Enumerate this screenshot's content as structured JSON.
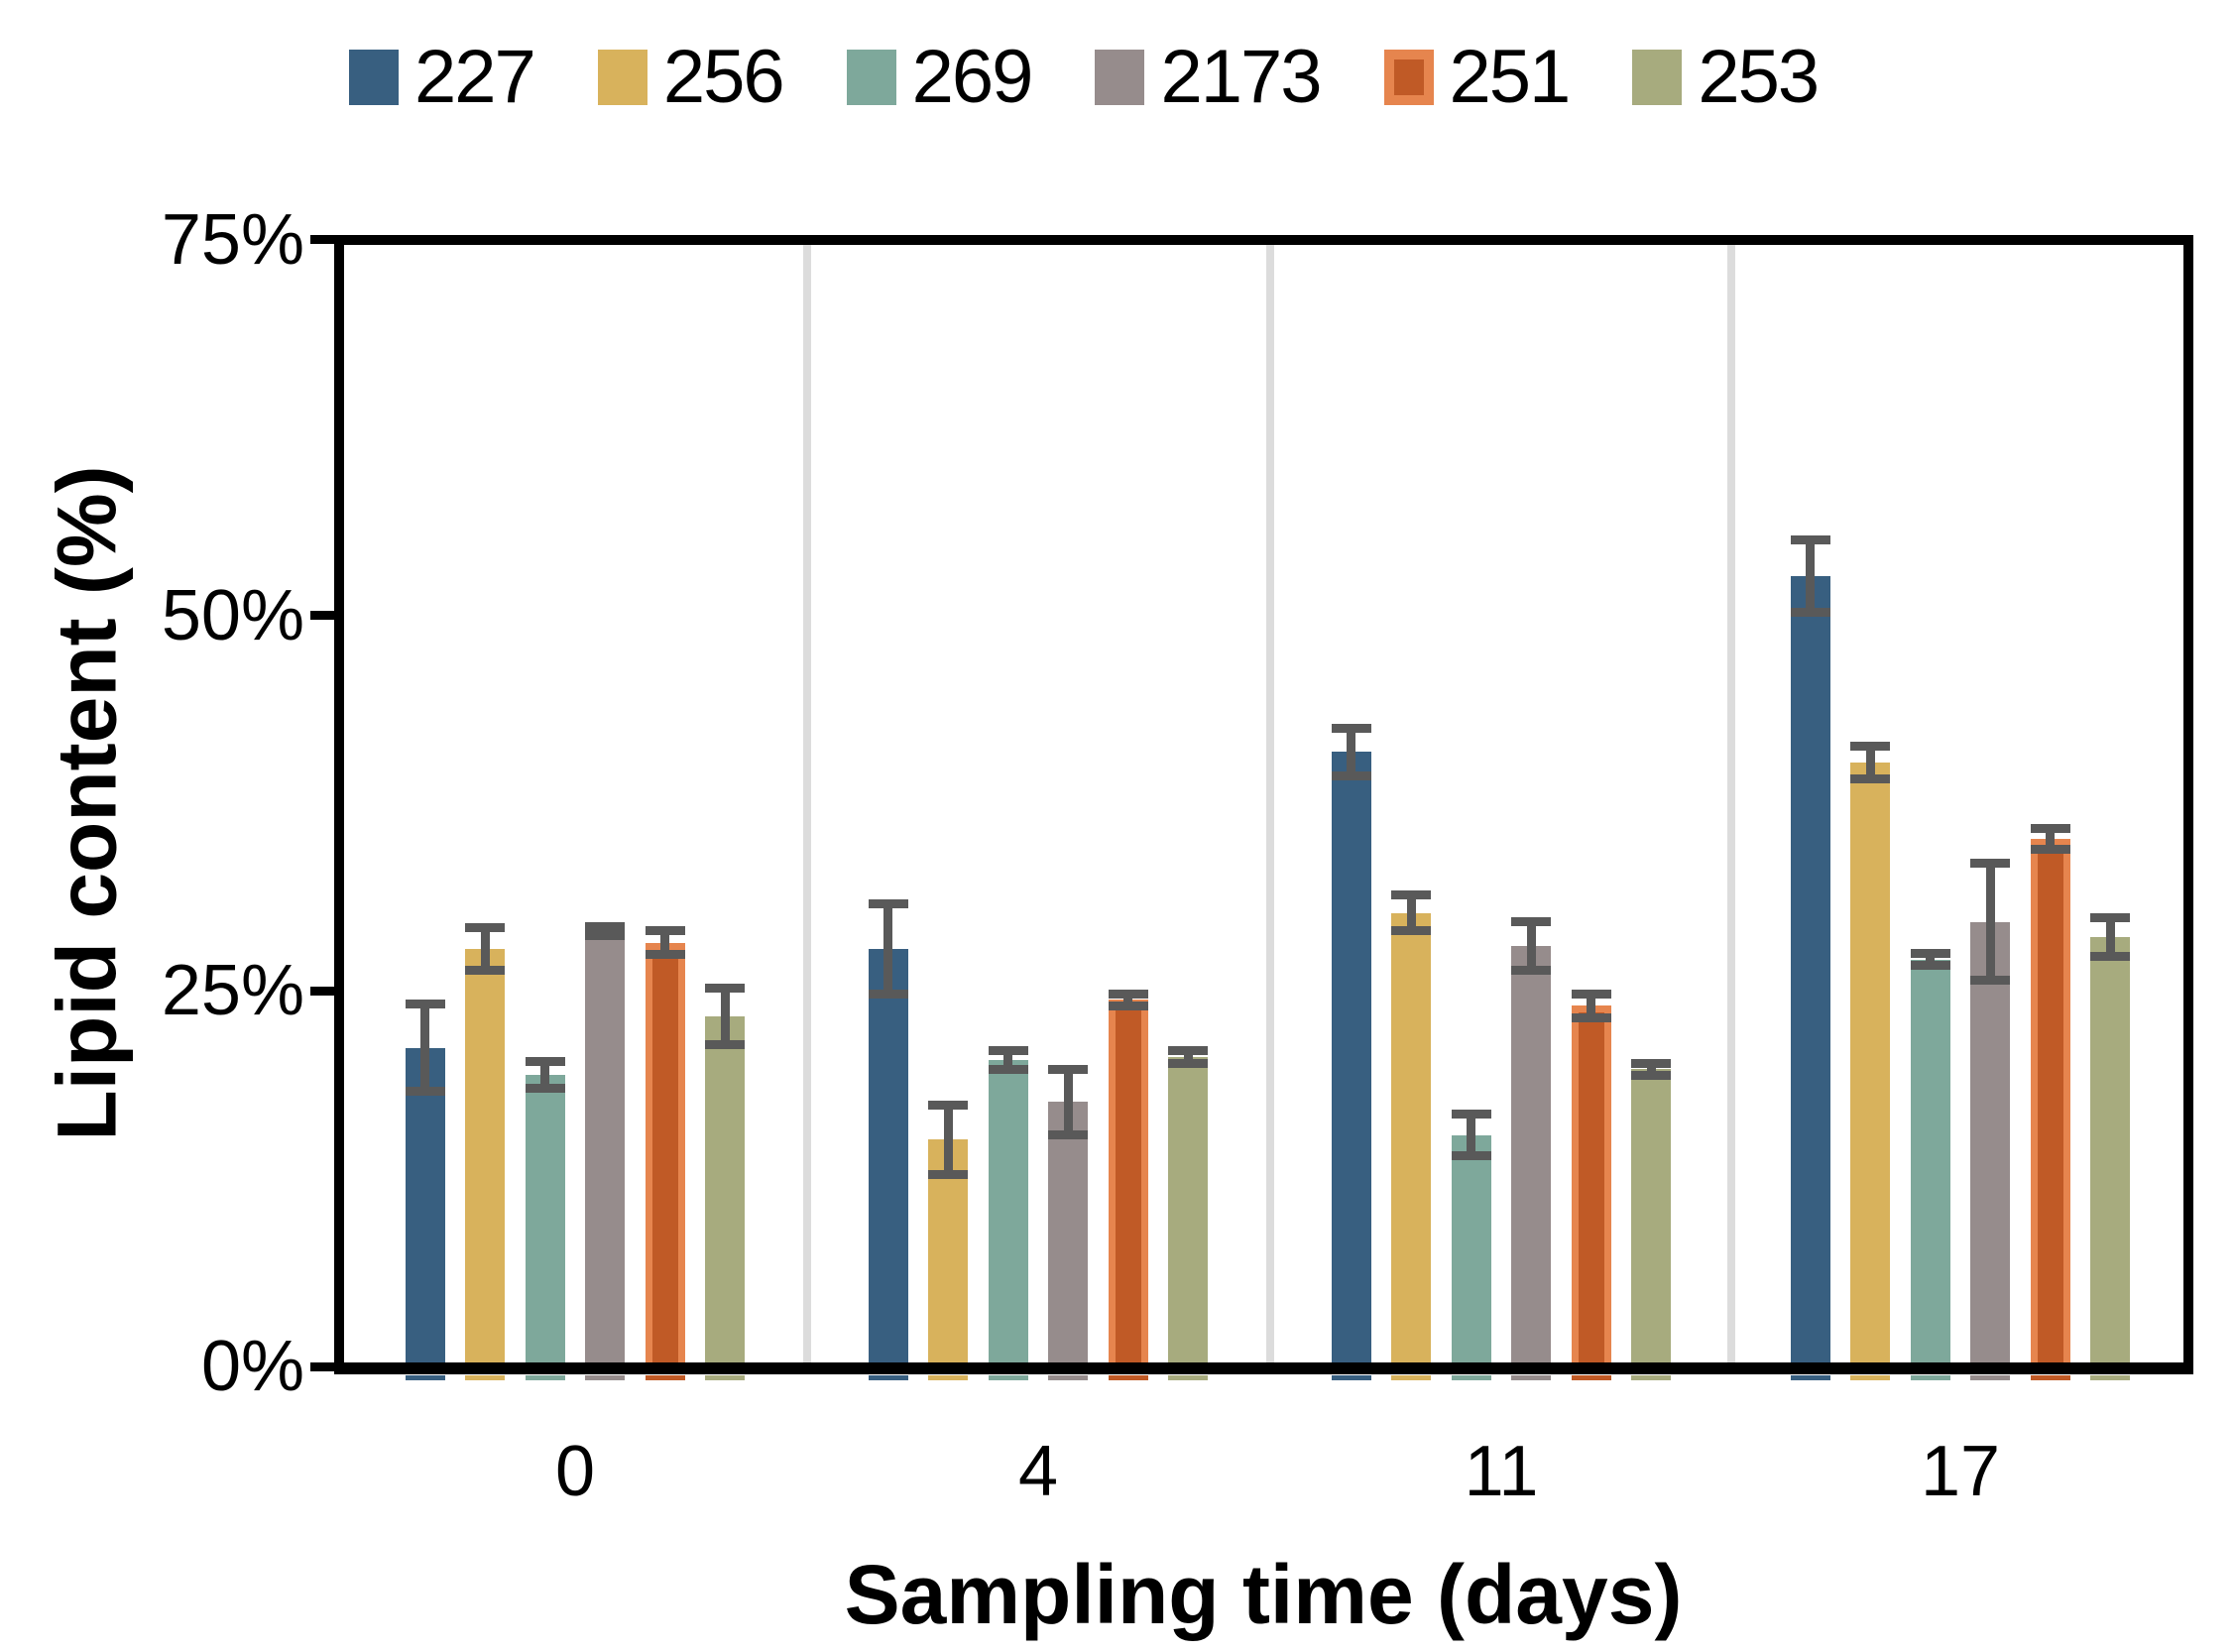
{
  "chart_data": {
    "type": "bar",
    "title": "",
    "xlabel": "Sampling time (days)",
    "ylabel": "Lipid content (%)",
    "ylim": [
      0,
      75
    ],
    "grid": "vertical-group-dividers-only",
    "legend_position": "top",
    "yticks": {
      "values": [
        0,
        25,
        50,
        75
      ],
      "labels": [
        "0%",
        "25%",
        "50%",
        "75%"
      ]
    },
    "categories": [
      "0",
      "4",
      "11",
      "17"
    ],
    "series": [
      {
        "name": "227",
        "color": "#385F80",
        "values": [
          21.2,
          27.8,
          40.9,
          52.6
        ],
        "errors": [
          2.9,
          3.0,
          1.6,
          2.4
        ]
      },
      {
        "name": "256",
        "color": "#D8B25C",
        "values": [
          27.8,
          15.1,
          30.2,
          40.2
        ],
        "errors": [
          1.4,
          2.3,
          1.2,
          1.1
        ]
      },
      {
        "name": "269",
        "color": "#7EA89B",
        "values": [
          19.4,
          20.4,
          15.4,
          27.1
        ],
        "errors": [
          0.9,
          0.6,
          1.4,
          0.4
        ]
      },
      {
        "name": "2173",
        "color": "#968C8C",
        "values": [
          29.0,
          17.6,
          28.0,
          29.6
        ],
        "errors": [
          0.3,
          2.2,
          1.6,
          3.9
        ]
      },
      {
        "name": "251",
        "color": "#C05A26",
        "border_color": "#E6854E",
        "values": [
          28.2,
          24.4,
          24.0,
          35.1
        ],
        "errors": [
          0.8,
          0.4,
          0.8,
          0.7
        ]
      },
      {
        "name": "253",
        "color": "#A7AB7E",
        "values": [
          23.3,
          20.6,
          19.8,
          28.6
        ],
        "errors": [
          1.9,
          0.4,
          0.4,
          1.3
        ]
      }
    ],
    "error_bar_color": "#595959",
    "divider_color": "#dcdcdc"
  }
}
